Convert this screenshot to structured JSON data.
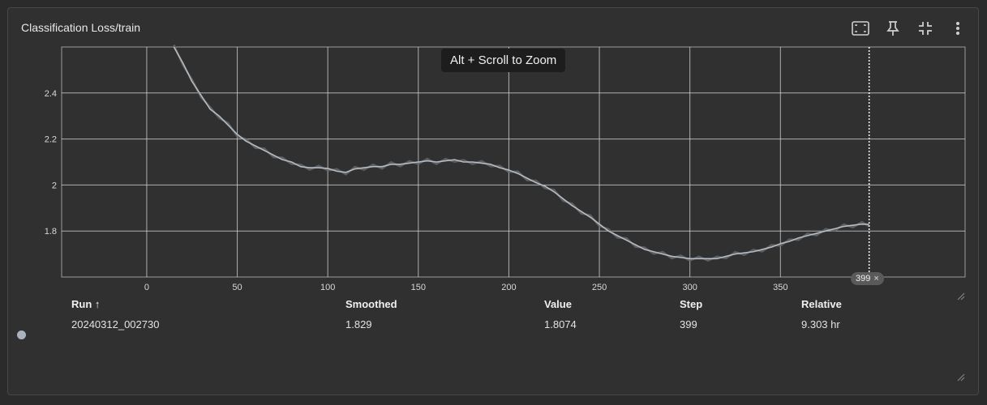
{
  "card": {
    "title": "Classification Loss/train",
    "toolbar": [
      {
        "name": "fit-domain-icon"
      },
      {
        "name": "pin-icon"
      },
      {
        "name": "collapse-icon"
      },
      {
        "name": "more-vert-icon"
      }
    ]
  },
  "tooltip": "Alt + Scroll to Zoom",
  "step_chip": {
    "value": "399",
    "close": "×"
  },
  "chart_data": {
    "type": "line",
    "xlim": [
      -47,
      452
    ],
    "ylim": [
      1.6,
      2.6
    ],
    "x_ticks": [
      "0",
      "50",
      "100",
      "150",
      "200",
      "250",
      "300",
      "350"
    ],
    "x_tick_values": [
      0,
      50,
      100,
      150,
      200,
      250,
      300,
      350
    ],
    "y_ticks": [
      "1.8",
      "2",
      "2.2",
      "2.4"
    ],
    "y_tick_values": [
      1.8,
      2.0,
      2.2,
      2.4
    ],
    "grid": true,
    "colors": {
      "line": "#b4bcc4",
      "raw": "#6a6a6a",
      "grid": "#d8d8d8",
      "cursor": "#ffffff"
    },
    "cursor_x": 399,
    "series": [
      {
        "x": [
          15,
          20,
          25,
          30,
          35,
          40,
          45,
          50,
          55,
          60,
          65,
          70,
          75,
          80,
          85,
          90,
          95,
          100,
          105,
          110,
          115,
          120,
          125,
          130,
          135,
          140,
          145,
          150,
          155,
          160,
          165,
          170,
          175,
          180,
          185,
          190,
          195,
          200,
          205,
          210,
          215,
          220,
          225,
          230,
          235,
          240,
          245,
          250,
          255,
          260,
          265,
          270,
          275,
          280,
          285,
          290,
          295,
          300,
          305,
          310,
          315,
          320,
          325,
          330,
          335,
          340,
          345,
          350,
          355,
          360,
          365,
          370,
          375,
          380,
          385,
          390,
          395,
          399
        ],
        "y": [
          2.6,
          2.53,
          2.45,
          2.39,
          2.33,
          2.3,
          2.26,
          2.22,
          2.19,
          2.17,
          2.15,
          2.13,
          2.11,
          2.1,
          2.08,
          2.075,
          2.075,
          2.072,
          2.06,
          2.055,
          2.07,
          2.075,
          2.08,
          2.08,
          2.09,
          2.09,
          2.095,
          2.1,
          2.105,
          2.1,
          2.105,
          2.11,
          2.1,
          2.1,
          2.095,
          2.09,
          2.075,
          2.065,
          2.05,
          2.03,
          2.01,
          1.995,
          1.97,
          1.94,
          1.91,
          1.885,
          1.86,
          1.83,
          1.8,
          1.78,
          1.76,
          1.74,
          1.72,
          1.71,
          1.7,
          1.69,
          1.685,
          1.68,
          1.68,
          1.68,
          1.68,
          1.69,
          1.7,
          1.705,
          1.71,
          1.72,
          1.73,
          1.745,
          1.755,
          1.77,
          1.78,
          1.79,
          1.8,
          1.81,
          1.82,
          1.825,
          1.83,
          1.829
        ]
      }
    ]
  },
  "table": {
    "headers": {
      "run": "Run ↑",
      "smoothed": "Smoothed",
      "value": "Value",
      "step": "Step",
      "relative": "Relative"
    },
    "row": {
      "run": "20240312_002730",
      "smoothed": "1.829",
      "value": "1.8074",
      "step": "399",
      "relative": "9.303 hr"
    },
    "run_color": "#aab3bd"
  }
}
